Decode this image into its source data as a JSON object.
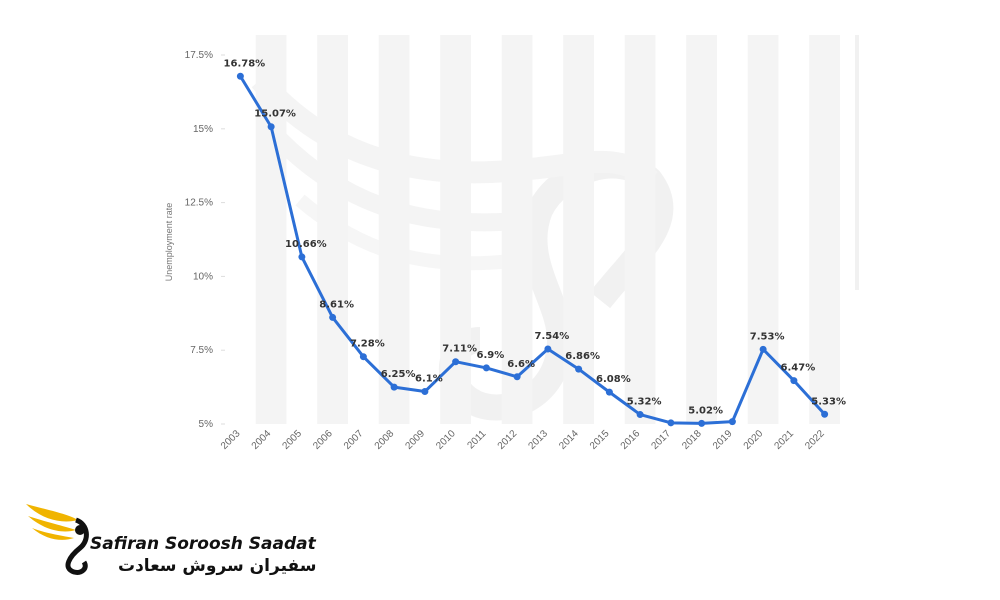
{
  "chart_data": {
    "type": "line",
    "title": "",
    "xlabel": "",
    "ylabel": "Unemployment rate",
    "x": [
      "2003",
      "2004",
      "2005",
      "2006",
      "2007",
      "2008",
      "2009",
      "2010",
      "2011",
      "2012",
      "2013",
      "2014",
      "2015",
      "2016",
      "2017",
      "2018",
      "2019",
      "2020",
      "2021",
      "2022"
    ],
    "series": [
      {
        "values": [
          16.78,
          15.07,
          10.66,
          8.61,
          7.28,
          6.25,
          6.1,
          7.11,
          6.9,
          6.6,
          7.54,
          6.86,
          6.08,
          5.32,
          5.04,
          5.02,
          5.08,
          7.53,
          6.47,
          5.33
        ],
        "labels": [
          "16.78%",
          "15.07%",
          "10.66%",
          "8.61%",
          "7.28%",
          "6.25%",
          "6.1%",
          "7.11%",
          "6.9%",
          "6.6%",
          "7.54%",
          "6.86%",
          "6.08%",
          "5.32%",
          "",
          "5.02%",
          "",
          "7.53%",
          "6.47%",
          "5.33%"
        ]
      }
    ],
    "yticks": [
      5,
      7.5,
      10,
      12.5,
      15,
      17.5
    ],
    "ytick_labels": [
      "5%",
      "7.5%",
      "10%",
      "12.5%",
      "15%",
      "17.5%"
    ],
    "ylim": [
      5,
      17.5
    ],
    "grid": "alternating vertical bands",
    "line_color": "#2c6fd6"
  },
  "logo": {
    "brand_en": "Safiran Soroosh Saadat",
    "brand_fa": "سفیران سروش سعادت",
    "accent_color": "#f0b400",
    "icon": "swan-wing-icon"
  }
}
